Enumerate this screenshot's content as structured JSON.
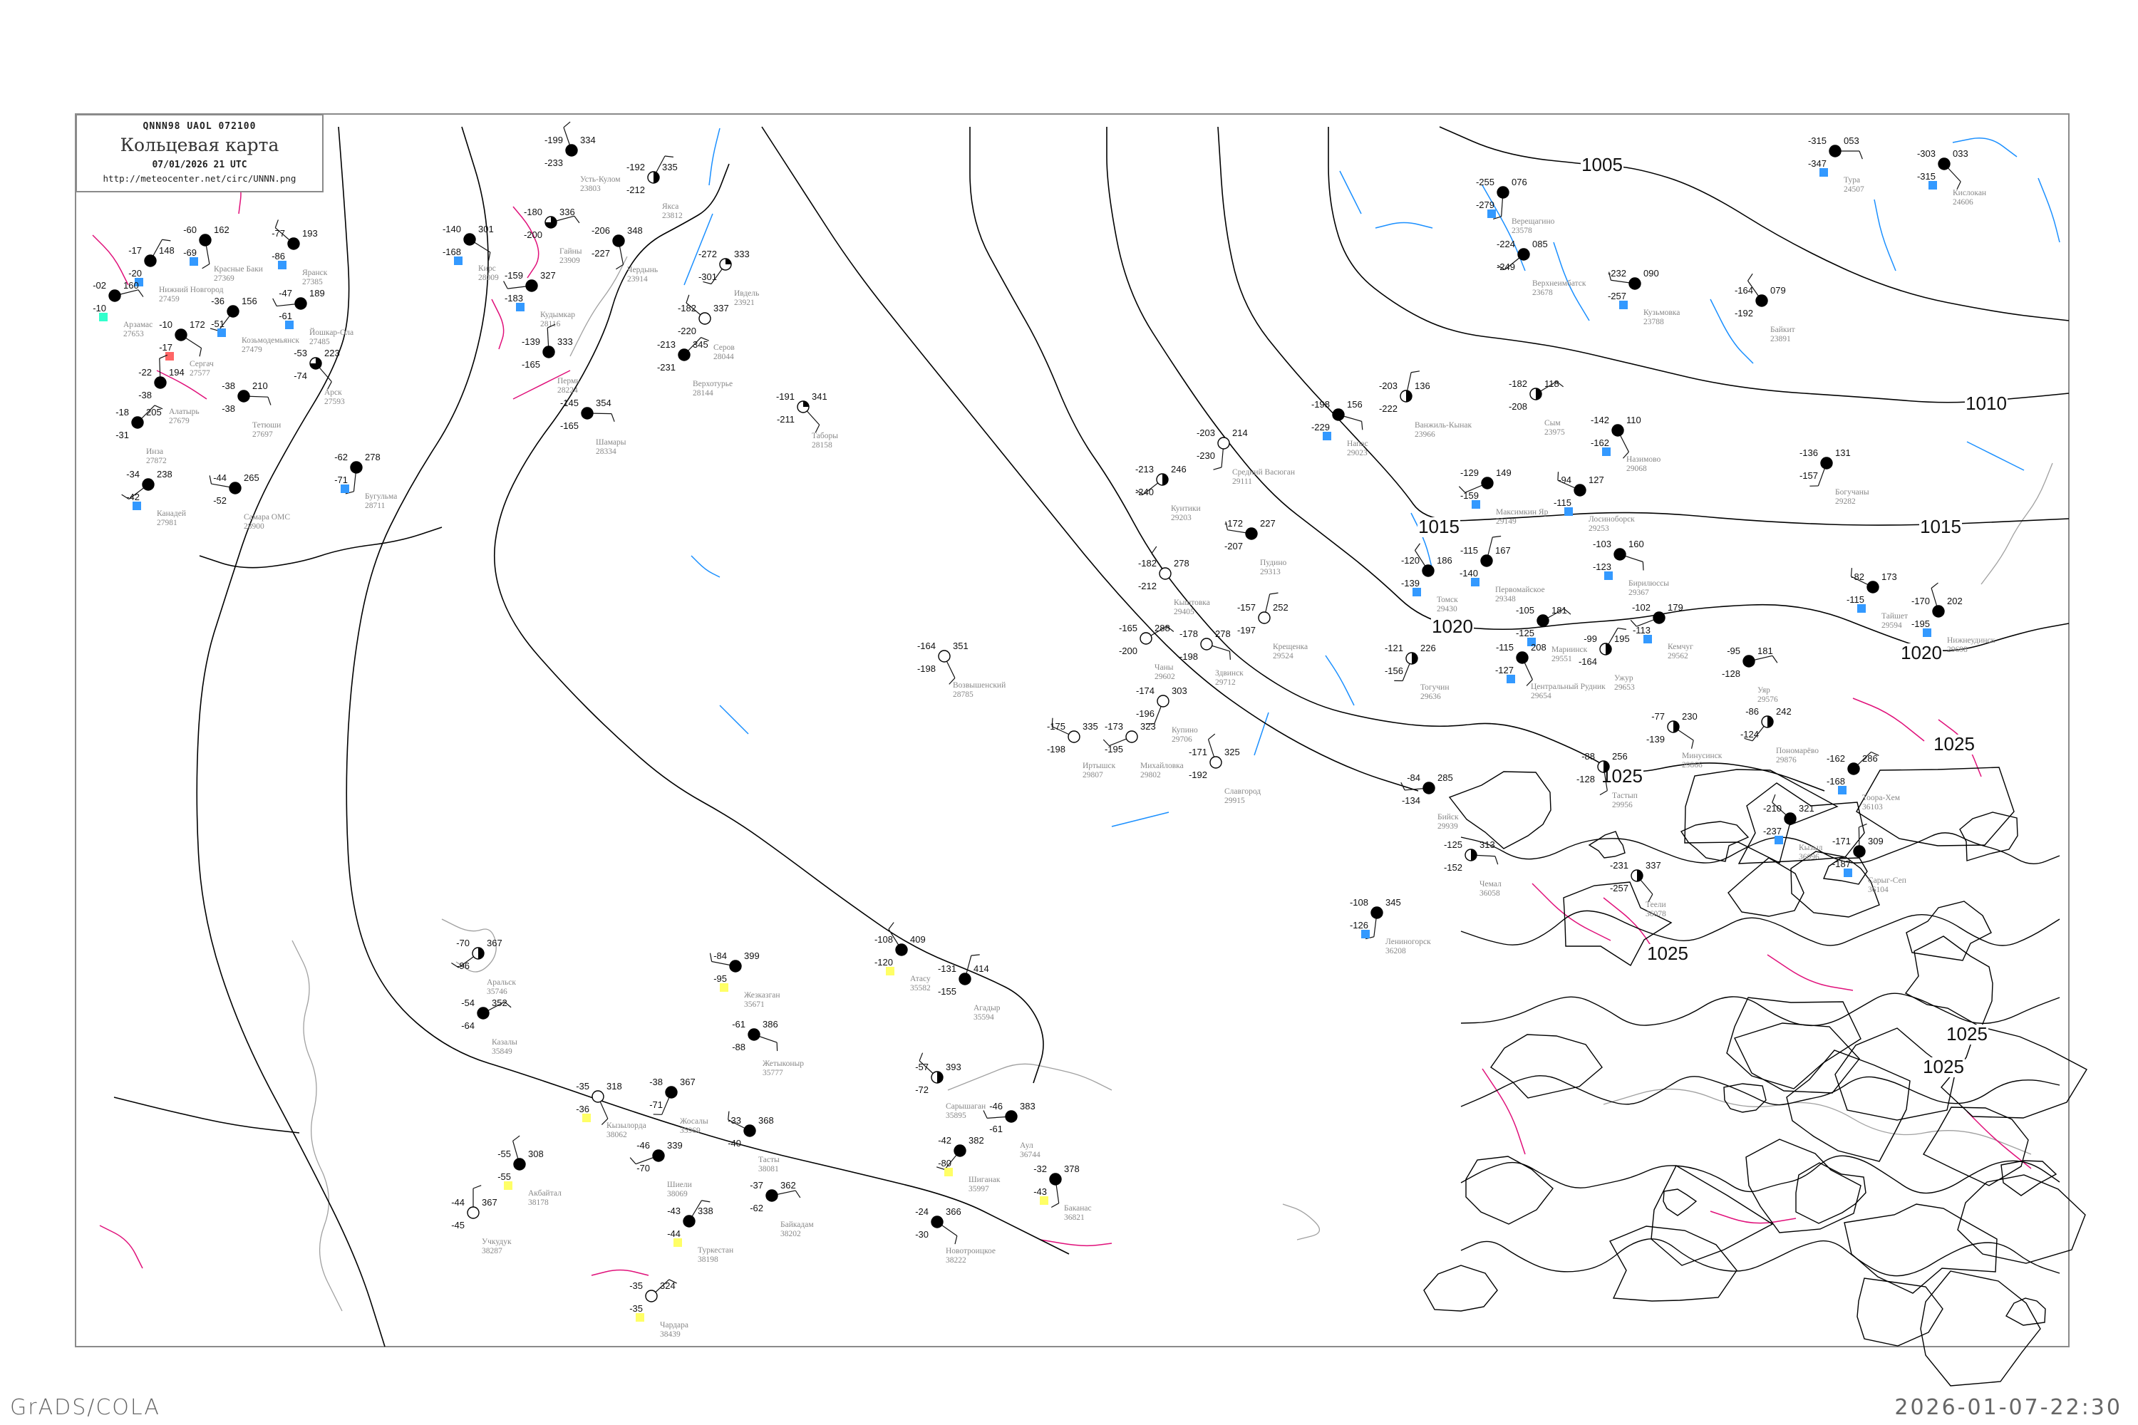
{
  "header": {
    "code_line": "QNNN98   UAOL   072100",
    "title": "Кольцевая карта",
    "datetime": "07/01/2026 21 UTC",
    "url": "http://meteocenter.net/circ/UNNN.png"
  },
  "footer": {
    "software": "GrADS/COLA",
    "timestamp": "2026-01-07-22:30"
  },
  "colors": {
    "isobar": "#000000",
    "isotherm_pos": "#e0107a",
    "isotherm_neg": "#1a8fff",
    "coast": "#a0a0a0",
    "frame": "#8a8a8a",
    "marker_blue": "#3399ff",
    "marker_yellow": "#ffff66",
    "marker_teal": "#33ffcc",
    "marker_red": "#ff6666"
  },
  "isobars": {
    "labels": [
      "1005",
      "1010",
      "1015",
      "1015",
      "1020",
      "1020",
      "1025",
      "1025",
      "1025",
      "1025",
      "1025"
    ]
  },
  "stations": [
    {
      "name": "Тура",
      "id": "24507",
      "t": "-315",
      "p": "053",
      "td": "-347",
      "cloud": 1,
      "marker": "blue"
    },
    {
      "name": "Кислокан",
      "id": "24606",
      "t": "-303",
      "p": "033",
      "td": "-315",
      "cloud": 1,
      "marker": "blue"
    },
    {
      "name": "Верещагино",
      "id": "23578",
      "t": "-255",
      "p": "076",
      "td": "-279",
      "cloud": 1,
      "marker": "blue"
    },
    {
      "name": "Верхнеимбатск",
      "id": "23678",
      "t": "-224",
      "p": "085",
      "td": "-249",
      "cloud": 1,
      "marker": ""
    },
    {
      "name": "Кузьмовка",
      "id": "23788",
      "t": "-232",
      "p": "090",
      "td": "-257",
      "cloud": 1,
      "marker": "blue"
    },
    {
      "name": "Байкит",
      "id": "23891",
      "t": "-164",
      "p": "079",
      "td": "-192",
      "cloud": 1,
      "marker": ""
    },
    {
      "name": "Ванжиль-Кынак",
      "id": "23966",
      "t": "-203",
      "p": "136",
      "td": "-222",
      "cloud": 0.5,
      "marker": ""
    },
    {
      "name": "Сым",
      "id": "23975",
      "t": "-182",
      "p": "118",
      "td": "-208",
      "cloud": 0.5,
      "marker": ""
    },
    {
      "name": "Напас",
      "id": "29023",
      "t": "-198",
      "p": "156",
      "td": "-229",
      "cloud": 1,
      "marker": "blue"
    },
    {
      "name": "Назимово",
      "id": "29068",
      "t": "-142",
      "p": "110",
      "td": "-162",
      "cloud": 1,
      "marker": "blue"
    },
    {
      "name": "Богучаны",
      "id": "29282",
      "t": "-136",
      "p": "131",
      "td": "-157",
      "cloud": 1,
      "marker": ""
    },
    {
      "name": "Максимкин Яр",
      "id": "29149",
      "t": "-129",
      "p": "149",
      "td": "-159",
      "cloud": 1,
      "marker": "blue"
    },
    {
      "name": "Лосиноборск",
      "id": "29253",
      "t": "-94",
      "p": "127",
      "td": "-115",
      "cloud": 1,
      "marker": "blue"
    },
    {
      "name": "Усть-Кулом",
      "id": "23803",
      "t": "-199",
      "p": "334",
      "td": "-233",
      "cloud": 1,
      "marker": ""
    },
    {
      "name": "Якса",
      "id": "23812",
      "t": "-192",
      "p": "335",
      "td": "-212",
      "cloud": 0.5,
      "marker": ""
    },
    {
      "name": "Гайны",
      "id": "23909",
      "t": "-180",
      "p": "336",
      "td": "-200",
      "cloud": 0.75,
      "marker": ""
    },
    {
      "name": "Кирс",
      "id": "28009",
      "t": "-140",
      "p": "301",
      "td": "-168",
      "cloud": 1,
      "marker": "blue"
    },
    {
      "name": "Чердынь",
      "id": "23914",
      "t": "-206",
      "p": "348",
      "td": "-227",
      "cloud": 1,
      "marker": ""
    },
    {
      "name": "Ивдель",
      "id": "23921",
      "t": "-272",
      "p": "333",
      "td": "-301",
      "cloud": 0.25,
      "marker": ""
    },
    {
      "name": "Кудымкар",
      "id": "28116",
      "t": "-159",
      "p": "327",
      "td": "-183",
      "cloud": 1,
      "marker": "blue"
    },
    {
      "name": "Серов",
      "id": "28044",
      "t": "-182",
      "p": "337",
      "td": "-220",
      "cloud": 0,
      "marker": ""
    },
    {
      "name": "Пермь",
      "id": "28224",
      "t": "-139",
      "p": "333",
      "td": "-165",
      "cloud": 1,
      "marker": ""
    },
    {
      "name": "Верхотурье",
      "id": "28144",
      "t": "-213",
      "p": "345",
      "td": "-231",
      "cloud": 1,
      "marker": ""
    },
    {
      "name": "Шамары",
      "id": "28334",
      "t": "-145",
      "p": "354",
      "td": "-165",
      "cloud": 1,
      "marker": ""
    },
    {
      "name": "Таборы",
      "id": "28158",
      "t": "-191",
      "p": "341",
      "td": "-211",
      "cloud": 0.25,
      "marker": ""
    },
    {
      "name": "Средний Васюган",
      "id": "29111",
      "t": "-203",
      "p": "214",
      "td": "-230",
      "cloud": 0,
      "marker": ""
    },
    {
      "name": "Кунтики",
      "id": "29203",
      "t": "-213",
      "p": "246",
      "td": "-240",
      "cloud": 0.5,
      "marker": ""
    },
    {
      "name": "Пудино",
      "id": "29313",
      "t": "-172",
      "p": "227",
      "td": "-207",
      "cloud": 1,
      "marker": ""
    },
    {
      "name": "Кыштовка",
      "id": "29405",
      "t": "-182",
      "p": "278",
      "td": "-212",
      "cloud": 0,
      "marker": ""
    },
    {
      "name": "Крещенка",
      "id": "29524",
      "t": "-157",
      "p": "252",
      "td": "-197",
      "cloud": 0,
      "marker": ""
    },
    {
      "name": "Чаны",
      "id": "29602",
      "t": "-165",
      "p": "288",
      "td": "-200",
      "cloud": 0,
      "marker": ""
    },
    {
      "name": "Здвинск",
      "id": "29712",
      "t": "-178",
      "p": "278",
      "td": "-198",
      "cloud": 0,
      "marker": ""
    },
    {
      "name": "Возвышенский",
      "id": "28785",
      "t": "-164",
      "p": "351",
      "td": "-198",
      "cloud": 0,
      "marker": ""
    },
    {
      "name": "Купино",
      "id": "29706",
      "t": "-174",
      "p": "303",
      "td": "-196",
      "cloud": 0,
      "marker": ""
    },
    {
      "name": "Михайловка",
      "id": "29802",
      "t": "-173",
      "p": "323",
      "td": "-195",
      "cloud": 0,
      "marker": ""
    },
    {
      "name": "Иртышск",
      "id": "29807",
      "t": "-175",
      "p": "335",
      "td": "-198",
      "cloud": 0,
      "marker": ""
    },
    {
      "name": "Славгород",
      "id": "29915",
      "t": "-171",
      "p": "325",
      "td": "-192",
      "cloud": 0,
      "marker": ""
    },
    {
      "name": "Нижний Новгород",
      "id": "27459",
      "t": "-17",
      "p": "148",
      "td": "-20",
      "cloud": 1,
      "marker": "blue"
    },
    {
      "name": "Арзамас",
      "id": "27653",
      "t": "-02",
      "p": "160",
      "td": "-10",
      "cloud": 1,
      "marker": "teal"
    },
    {
      "name": "Сергач",
      "id": "27577",
      "t": "-10",
      "p": "172",
      "td": "-17",
      "cloud": 1,
      "marker": "red"
    },
    {
      "name": "Красные Баки",
      "id": "27369",
      "t": "-60",
      "p": "162",
      "td": "-69",
      "cloud": 1,
      "marker": "blue"
    },
    {
      "name": "Козьмодемьянск",
      "id": "27479",
      "t": "-36",
      "p": "156",
      "td": "-51",
      "cloud": 1,
      "marker": "blue"
    },
    {
      "name": "Йошкар-Ола",
      "id": "27485",
      "t": "-47",
      "p": "189",
      "td": "-61",
      "cloud": 1,
      "marker": "blue"
    },
    {
      "name": "Яранск",
      "id": "27385",
      "t": "-77",
      "p": "193",
      "td": "-86",
      "cloud": 1,
      "marker": "blue"
    },
    {
      "name": "Алатырь",
      "id": "27679",
      "t": "-22",
      "p": "194",
      "td": "-38",
      "cloud": 1,
      "marker": ""
    },
    {
      "name": "Инза",
      "id": "27872",
      "t": "-18",
      "p": "205",
      "td": "-31",
      "cloud": 1,
      "marker": ""
    },
    {
      "name": "Тетюши",
      "id": "27697",
      "t": "-38",
      "p": "210",
      "td": "-38",
      "cloud": 1,
      "marker": ""
    },
    {
      "name": "Арск",
      "id": "27593",
      "t": "-53",
      "p": "223",
      "td": "-74",
      "cloud": 0.75,
      "marker": ""
    },
    {
      "name": "Бугульма",
      "id": "28711",
      "t": "-62",
      "p": "278",
      "td": "-71",
      "cloud": 1,
      "marker": "blue"
    },
    {
      "name": "Канадей",
      "id": "27981",
      "t": "-34",
      "p": "238",
      "td": "-42",
      "cloud": 1,
      "marker": "blue"
    },
    {
      "name": "Самара ОМС",
      "id": "28900",
      "t": "-44",
      "p": "265",
      "td": "-52",
      "cloud": 1,
      "marker": ""
    },
    {
      "name": "Томск",
      "id": "29430",
      "t": "-120",
      "p": "186",
      "td": "-139",
      "cloud": 1,
      "marker": "blue"
    },
    {
      "name": "Первомайское",
      "id": "29348",
      "t": "-115",
      "p": "167",
      "td": "-140",
      "cloud": 1,
      "marker": "blue"
    },
    {
      "name": "Мариинск",
      "id": "29551",
      "t": "-105",
      "p": "181",
      "td": "-125",
      "cloud": 1,
      "marker": "blue"
    },
    {
      "name": "Бирилюссы",
      "id": "29367",
      "t": "-103",
      "p": "160",
      "td": "-123",
      "cloud": 1,
      "marker": "blue"
    },
    {
      "name": "Центральный Рудник",
      "id": "29654",
      "t": "-115",
      "p": "208",
      "td": "-127",
      "cloud": 1,
      "marker": "blue"
    },
    {
      "name": "Тогучин",
      "id": "29636",
      "t": "-121",
      "p": "226",
      "td": "-156",
      "cloud": 0.5,
      "marker": ""
    },
    {
      "name": "Кемчуг",
      "id": "29562",
      "t": "-102",
      "p": "179",
      "td": "-113",
      "cloud": 1,
      "marker": "blue"
    },
    {
      "name": "Тайшет",
      "id": "29594",
      "t": "-82",
      "p": "173",
      "td": "-115",
      "cloud": 1,
      "marker": "blue"
    },
    {
      "name": "Нижнеудинск",
      "id": "29698",
      "t": "-170",
      "p": "202",
      "td": "-195",
      "cloud": 1,
      "marker": "blue"
    },
    {
      "name": "Ужур",
      "id": "29653",
      "t": "-99",
      "p": "195",
      "td": "-164",
      "cloud": 0.5,
      "marker": ""
    },
    {
      "name": "Уяр",
      "id": "29576",
      "t": "-95",
      "p": "181",
      "td": "-128",
      "cloud": 1,
      "marker": ""
    },
    {
      "name": "Минусинск",
      "id": "29866",
      "t": "-77",
      "p": "230",
      "td": "-139",
      "cloud": 0.5,
      "marker": ""
    },
    {
      "name": "Тастып",
      "id": "29956",
      "t": "-88",
      "p": "256",
      "td": "-128",
      "cloud": 0.5,
      "marker": ""
    },
    {
      "name": "Пономарёво",
      "id": "29876",
      "t": "-86",
      "p": "242",
      "td": "-124",
      "cloud": 0.5,
      "marker": ""
    },
    {
      "name": "Бийск",
      "id": "29939",
      "t": "-84",
      "p": "285",
      "td": "-134",
      "cloud": 1,
      "marker": ""
    },
    {
      "name": "Кызыл",
      "id": "36096",
      "t": "-210",
      "p": "321",
      "td": "-237",
      "cloud": 1,
      "marker": "blue"
    },
    {
      "name": "Сарыг-Сеп",
      "id": "36104",
      "t": "-171",
      "p": "309",
      "td": "-187",
      "cloud": 1,
      "marker": "blue"
    },
    {
      "name": "Тоора-Хем",
      "id": "36103",
      "t": "-162",
      "p": "286",
      "td": "-168",
      "cloud": 1,
      "marker": "blue"
    },
    {
      "name": "Чемал",
      "id": "36058",
      "t": "-125",
      "p": "313",
      "td": "-152",
      "cloud": 0.5,
      "marker": ""
    },
    {
      "name": "Теели",
      "id": "36078",
      "t": "-231",
      "p": "337",
      "td": "-257",
      "cloud": 0.5,
      "marker": ""
    },
    {
      "name": "Лениногорск",
      "id": "36208",
      "t": "-108",
      "p": "345",
      "td": "-126",
      "cloud": 1,
      "marker": "blue"
    },
    {
      "name": "Аральск",
      "id": "35746",
      "t": "-70",
      "p": "367",
      "td": "-96",
      "cloud": 0.5,
      "marker": ""
    },
    {
      "name": "Жезказган",
      "id": "35671",
      "t": "-84",
      "p": "399",
      "td": "-95",
      "cloud": 1,
      "marker": "yellow"
    },
    {
      "name": "Атасу",
      "id": "35582",
      "t": "-108",
      "p": "409",
      "td": "-120",
      "cloud": 1,
      "marker": "yellow"
    },
    {
      "name": "Агадыр",
      "id": "35594",
      "t": "-131",
      "p": "414",
      "td": "-155",
      "cloud": 1,
      "marker": ""
    },
    {
      "name": "Казалы",
      "id": "35849",
      "t": "-54",
      "p": "352",
      "td": "-64",
      "cloud": 1,
      "marker": ""
    },
    {
      "name": "Жетыконыр",
      "id": "35777",
      "t": "-61",
      "p": "386",
      "td": "-88",
      "cloud": 1,
      "marker": ""
    },
    {
      "name": "Кызылорда",
      "id": "38062",
      "t": "-35",
      "p": "318",
      "td": "-36",
      "cloud": 0,
      "marker": "yellow"
    },
    {
      "name": "Жосалы",
      "id": "35969",
      "t": "-38",
      "p": "367",
      "td": "-71",
      "cloud": 1,
      "marker": ""
    },
    {
      "name": "Шиели",
      "id": "38069",
      "t": "-46",
      "p": "339",
      "td": "-70",
      "cloud": 1,
      "marker": ""
    },
    {
      "name": "Тасты",
      "id": "38081",
      "t": "-33",
      "p": "368",
      "td": "-40",
      "cloud": 1,
      "marker": ""
    },
    {
      "name": "Акбайтал",
      "id": "38178",
      "t": "-55",
      "p": "308",
      "td": "-55",
      "cloud": 1,
      "marker": "yellow"
    },
    {
      "name": "Туркестан",
      "id": "38198",
      "t": "-43",
      "p": "338",
      "td": "-44",
      "cloud": 1,
      "marker": "yellow"
    },
    {
      "name": "Байкадам",
      "id": "38202",
      "t": "-37",
      "p": "362",
      "td": "-62",
      "cloud": 1,
      "marker": ""
    },
    {
      "name": "Новотроицкое",
      "id": "38222",
      "t": "-24",
      "p": "366",
      "td": "-30",
      "cloud": 1,
      "marker": ""
    },
    {
      "name": "Баканас",
      "id": "36821",
      "t": "-32",
      "p": "378",
      "td": "-43",
      "cloud": 1,
      "marker": "yellow"
    },
    {
      "name": "Шиганак",
      "id": "35997",
      "t": "-42",
      "p": "382",
      "td": "-80",
      "cloud": 1,
      "marker": "yellow"
    },
    {
      "name": "Аул",
      "id": "36744",
      "t": "-46",
      "p": "383",
      "td": "-61",
      "cloud": 1,
      "marker": ""
    },
    {
      "name": "Сарышаган",
      "id": "35895",
      "t": "-57",
      "p": "393",
      "td": "-72",
      "cloud": 0.5,
      "marker": ""
    },
    {
      "name": "Учкудук",
      "id": "38287",
      "t": "-44",
      "p": "367",
      "td": "-45",
      "cloud": 0,
      "marker": ""
    },
    {
      "name": "Чардара",
      "id": "38439",
      "t": "-35",
      "p": "324",
      "td": "-35",
      "cloud": 0,
      "marker": "yellow"
    }
  ]
}
